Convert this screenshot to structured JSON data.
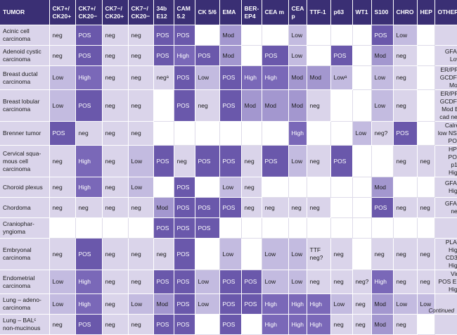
{
  "headers": [
    "TUMOR",
    "CK7+/\nCK20+",
    "CK7+/\nCK20−",
    "CK7−/\nCK20+",
    "CK7−/\nCK20−",
    "34b\nE12",
    "CAM\n5.2",
    "CK 5/6",
    "EMA",
    "BER-\nEP4",
    "CEA m",
    "CEA\np",
    "TTF-1",
    "p63",
    "WT1",
    "S100",
    "CHRO",
    "HEP",
    "OTHER"
  ],
  "rows": [
    {
      "tumor": "Acinic cell carcinoma",
      "cells": [
        "neg",
        "POS",
        "neg",
        "neg",
        "POS",
        "POS",
        "",
        "Mod",
        "",
        "",
        "Low",
        "",
        "",
        "",
        "POS",
        "Low",
        ""
      ],
      "other": ""
    },
    {
      "tumor": "Adenoid cystic carcinoma",
      "cells": [
        "neg",
        "POS",
        "neg",
        "neg",
        "POS",
        "High",
        "POS",
        "Mod",
        "",
        "POS",
        "Low",
        "",
        "POS",
        "",
        "Mod",
        "neg",
        ""
      ],
      "other": "GFAP Low"
    },
    {
      "tumor": "Breast ductal carcinoma",
      "cells": [
        "Low",
        "High",
        "neg",
        "neg",
        "negᵃ",
        "POS",
        "Low",
        "POS",
        "High",
        "High",
        "Mod",
        "Mod",
        "Lowᵃ",
        "",
        "Low",
        "neg",
        ""
      ],
      "other": "ER/PRᵇ GCDFP Mod"
    },
    {
      "tumor": "Breast lobular carcinoma",
      "cells": [
        "Low",
        "POS",
        "neg",
        "neg",
        "",
        "POS",
        "neg",
        "POS",
        "Mod",
        "Mod",
        "Mod",
        "neg",
        "",
        "",
        "Low",
        "neg",
        ""
      ],
      "other": "ER/PRᶜ GCDFP Mod E-cad neg"
    },
    {
      "tumor": "Brenner tumor",
      "cells": [
        "POS",
        "neg",
        "neg",
        "neg",
        "",
        "",
        "",
        "",
        "",
        "",
        "High",
        "",
        "",
        "Low",
        "neg?",
        "POS",
        ""
      ],
      "other": "Calret low NSE POS"
    },
    {
      "tumor": "Cervical squa- mous cell carcinoma",
      "cells": [
        "neg",
        "High",
        "neg",
        "Low",
        "POS",
        "neg",
        "POS",
        "POS",
        "neg",
        "POS",
        "Low",
        "neg",
        "POS",
        "",
        "",
        "neg",
        "neg"
      ],
      "other": "HPV POS p16 High"
    },
    {
      "tumor": "Choroid plexus",
      "cells": [
        "neg",
        "High",
        "neg",
        "Low",
        "",
        "POS",
        "",
        "Low",
        "neg",
        "",
        "",
        "",
        "",
        "",
        "Mod",
        "",
        ""
      ],
      "other": "GFAP High"
    },
    {
      "tumor": "Chordoma",
      "cells": [
        "neg",
        "neg",
        "neg",
        "neg",
        "Mod",
        "POS",
        "POS",
        "POS",
        "neg",
        "neg",
        "neg",
        "neg",
        "",
        "",
        "POS",
        "neg",
        "neg"
      ],
      "other": "GFAP neg"
    },
    {
      "tumor": "Craniophar- yngioma",
      "cells": [
        "",
        "",
        "",
        "",
        "POS",
        "POS",
        "POS",
        "",
        "",
        "",
        "",
        "",
        "",
        "",
        "",
        "",
        ""
      ],
      "other": ""
    },
    {
      "tumor": "Embryonal carcinoma",
      "cells": [
        "neg",
        "POS",
        "neg",
        "neg",
        "neg",
        "POS",
        "",
        "Low",
        "",
        "Low",
        "Low",
        "TTF neg?",
        "neg",
        "",
        "neg",
        "neg",
        "neg"
      ],
      "other": "PLAP High CD30 High"
    },
    {
      "tumor": "Endometrial carcinoma",
      "cells": [
        "Low",
        "High",
        "neg",
        "neg",
        "POS",
        "POS",
        "Low",
        "POS",
        "POS",
        "Low",
        "Low",
        "neg",
        "neg",
        "neg?",
        "High",
        "neg",
        "neg"
      ],
      "other": "Vim POS ER High"
    },
    {
      "tumor": "Lung – adeno- carcinoma",
      "cells": [
        "Low",
        "High",
        "neg",
        "Low",
        "Mod",
        "POS",
        "Low",
        "POS",
        "POS",
        "High",
        "High",
        "High",
        "Low",
        "neg",
        "Mod",
        "Low",
        "Low"
      ],
      "other": ""
    },
    {
      "tumor": "Lung – BALᶜ non-mucinous",
      "cells": [
        "neg",
        "POS",
        "neg",
        "neg",
        "POS",
        "POS",
        "",
        "POS",
        "",
        "High",
        "High",
        "High",
        "neg",
        "neg",
        "Mod",
        "neg",
        ""
      ],
      "other": ""
    }
  ],
  "continued": "Continued"
}
